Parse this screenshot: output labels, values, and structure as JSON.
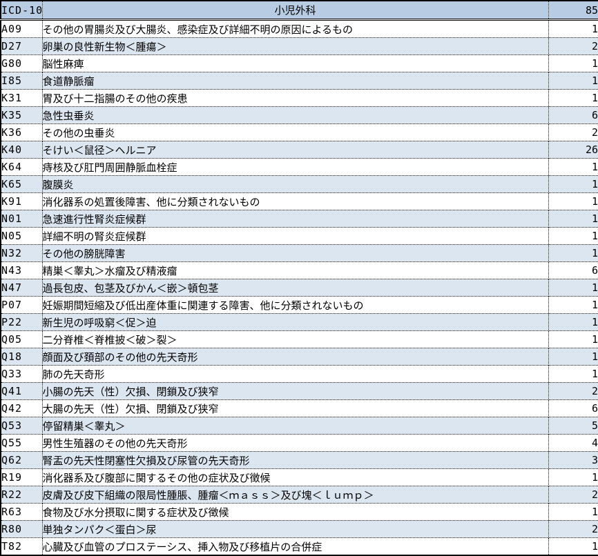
{
  "colors": {
    "header_bg": "#b8cce4",
    "stripe_bg": "#dce6f1",
    "border": "#000000"
  },
  "table": {
    "header": {
      "code_label": "ICD-10",
      "department": "小児外科",
      "total_count": "85"
    },
    "rows": [
      {
        "code": "A09",
        "name": "その他の胃腸炎及び大腸炎、感染症及び詳細不明の原因によるもの",
        "count": "1"
      },
      {
        "code": "D27",
        "name": "卵巣の良性新生物＜腫瘍＞",
        "count": "2"
      },
      {
        "code": "G80",
        "name": "脳性麻痺",
        "count": "1"
      },
      {
        "code": "I85",
        "name": "食道静脈瘤",
        "count": "1"
      },
      {
        "code": "K31",
        "name": "胃及び十二指腸のその他の疾患",
        "count": "1"
      },
      {
        "code": "K35",
        "name": "急性虫垂炎",
        "count": "6"
      },
      {
        "code": "K36",
        "name": "その他の虫垂炎",
        "count": "2"
      },
      {
        "code": "K40",
        "name": "そけい＜鼠径＞ヘルニア",
        "count": "26"
      },
      {
        "code": "K64",
        "name": "痔核及び肛門周囲静脈血栓症",
        "count": "1"
      },
      {
        "code": "K65",
        "name": "腹膜炎",
        "count": "1"
      },
      {
        "code": "K91",
        "name": "消化器系の処置後障害、他に分類されないもの",
        "count": "1"
      },
      {
        "code": "N01",
        "name": "急速進行性腎炎症候群",
        "count": "1"
      },
      {
        "code": "N05",
        "name": "詳細不明の腎炎症候群",
        "count": "1"
      },
      {
        "code": "N32",
        "name": "その他の膀胱障害",
        "count": "1"
      },
      {
        "code": "N43",
        "name": "精巣＜睾丸＞水瘤及び精液瘤",
        "count": "6"
      },
      {
        "code": "N47",
        "name": "過長包皮、包茎及びかん＜嵌＞頓包茎",
        "count": "1"
      },
      {
        "code": "P07",
        "name": "妊娠期間短縮及び低出産体重に関連する障害、他に分類されないもの",
        "count": "1"
      },
      {
        "code": "P22",
        "name": "新生児の呼吸窮＜促＞迫",
        "count": "1"
      },
      {
        "code": "Q05",
        "name": "二分脊椎＜脊椎披＜破＞裂＞",
        "count": "1"
      },
      {
        "code": "Q18",
        "name": "顔面及び頚部のその他の先天奇形",
        "count": "1"
      },
      {
        "code": "Q33",
        "name": "肺の先天奇形",
        "count": "1"
      },
      {
        "code": "Q41",
        "name": "小腸の先天（性）欠損、閉鎖及び狭窄",
        "count": "2"
      },
      {
        "code": "Q42",
        "name": "大腸の先天（性）欠損、閉鎖及び狭窄",
        "count": "6"
      },
      {
        "code": "Q53",
        "name": "停留精巣＜睾丸＞",
        "count": "5"
      },
      {
        "code": "Q55",
        "name": "男性生殖器のその他の先天奇形",
        "count": "4"
      },
      {
        "code": "Q62",
        "name": "腎盂の先天性閉塞性欠損及び尿管の先天奇形",
        "count": "3"
      },
      {
        "code": "R19",
        "name": "消化器系及び腹部に関するその他の症状及び徴候",
        "count": "1"
      },
      {
        "code": "R22",
        "name": "皮膚及び皮下組織の限局性腫脹、腫瘤＜ｍａｓｓ＞及び塊＜ｌｕｍｐ＞",
        "count": "2"
      },
      {
        "code": "R63",
        "name": "食物及び水分摂取に関する症状及び徴候",
        "count": "1"
      },
      {
        "code": "R80",
        "name": "単独タンパク＜蛋白＞尿",
        "count": "2"
      },
      {
        "code": "T82",
        "name": "心臓及び血管のプロステーシス、挿入物及び移植片の合併症",
        "count": "1"
      }
    ]
  }
}
